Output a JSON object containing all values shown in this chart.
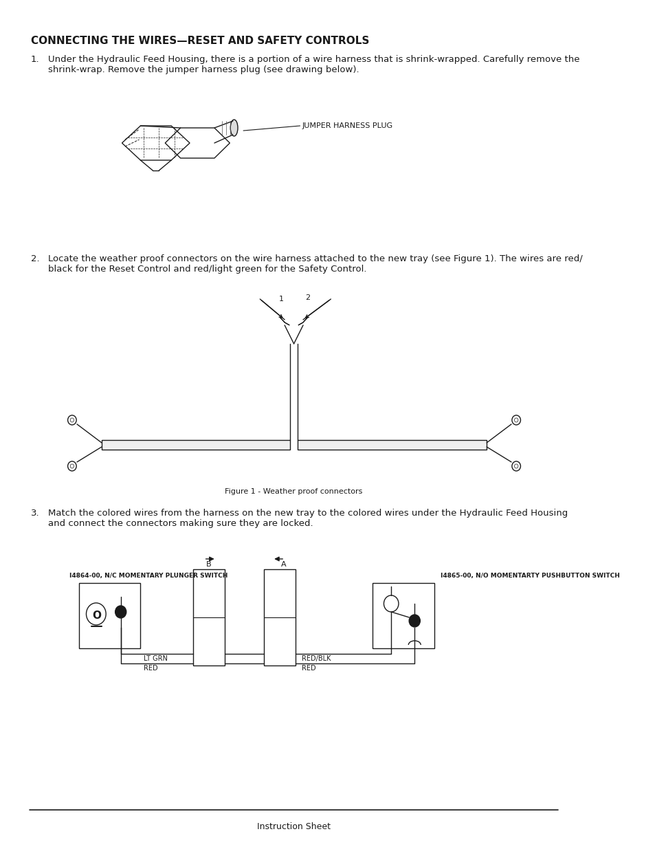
{
  "title": "CONNECTING THE WIRES—RESET AND SAFETY CONTROLS",
  "background_color": "#ffffff",
  "text_color": "#1a1a1a",
  "footer_text": "Instruction Sheet",
  "para1_number": "1.",
  "para1_text": "Under the Hydraulic Feed Housing, there is a portion of a wire harness that is shrink-wrapped. Carefully remove the\nshrink-wrap. Remove the jumper harness plug (see drawing below).",
  "jumper_label": "JUMPER HARNESS PLUG",
  "para2_number": "2.",
  "para2_text": "Locate the weather proof connectors on the wire harness attached to the new tray (see Figure 1). The wires are red/\nblack for the Reset Control and red/light green for the Safety Control.",
  "figure1_caption": "Figure 1 - Weather proof connectors",
  "para3_number": "3.",
  "para3_text": "Match the colored wires from the harness on the new tray to the colored wires under the Hydraulic Feed Housing\nand connect the connectors making sure they are locked.",
  "switch1_label": "I4864-00, N/C MOMENTARY PLUNGER SWITCH",
  "switch2_label": "I4865-00, N/O MOMENTARTY PUSHBUTTON SWITCH",
  "wire_lt_grn": "LT GRN",
  "wire_red1": "RED",
  "wire_red_blk": "RED/BLK",
  "wire_red2": "RED",
  "font_size_body": 9.5,
  "font_size_label": 8,
  "font_size_title": 11,
  "font_size_small": 7
}
